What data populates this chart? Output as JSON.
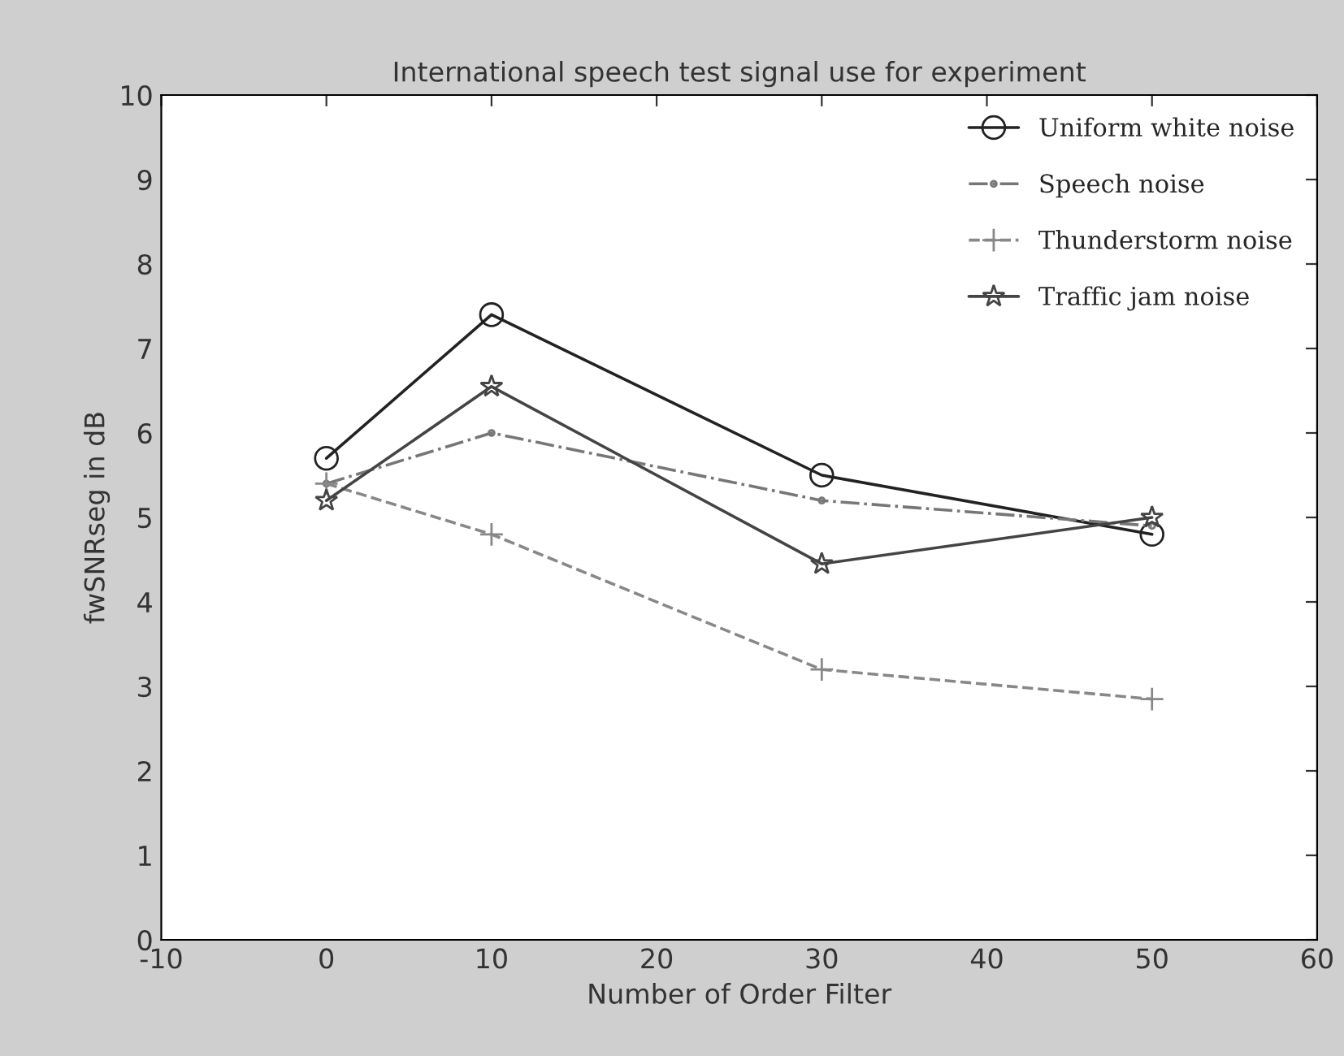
{
  "chart_data": {
    "type": "line",
    "title": "International speech test signal use for experiment",
    "xlabel": "Number of Order Filter",
    "ylabel": "fwSNRseg in dB",
    "x": [
      0,
      10,
      30,
      50
    ],
    "series": [
      {
        "name": "Uniform white noise",
        "color": "#222222",
        "marker": "circle",
        "line_style": "solid",
        "values": [
          5.7,
          7.4,
          5.5,
          4.8
        ]
      },
      {
        "name": "Speech noise",
        "color": "#777777",
        "marker": "point",
        "line_style": "dashdot",
        "values": [
          5.4,
          6.0,
          5.2,
          4.9
        ]
      },
      {
        "name": "Thunderstorm noise",
        "color": "#888888",
        "marker": "plus",
        "line_style": "dashed",
        "values": [
          5.4,
          4.8,
          3.2,
          2.85
        ]
      },
      {
        "name": "Traffic jam noise",
        "color": "#444444",
        "marker": "star",
        "line_style": "solid",
        "values": [
          5.2,
          6.55,
          4.45,
          5.0
        ]
      }
    ],
    "xlim": [
      -10,
      60
    ],
    "xticks": [
      -10,
      0,
      10,
      20,
      30,
      40,
      50,
      60
    ],
    "ylim": [
      0,
      10
    ],
    "yticks": [
      0,
      1,
      2,
      3,
      4,
      5,
      6,
      7,
      8,
      9,
      10
    ],
    "grid": false,
    "legend": "top right"
  }
}
